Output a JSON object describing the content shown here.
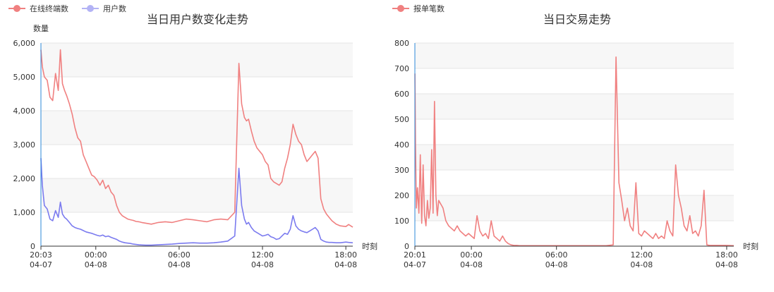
{
  "colors": {
    "red": "#f08080",
    "blue": "#7b7bef",
    "axis": "#2e8ad8",
    "band": "#f7f7f7",
    "grid": "#e6e6e6"
  },
  "chart_data": [
    {
      "type": "line",
      "title": "当日用户数变化走势",
      "ylabel": "数量",
      "xlabel": "时刻",
      "ylim": [
        0,
        6000
      ],
      "yticks": [
        "0",
        "1,000",
        "2,000",
        "3,000",
        "4,000",
        "5,000",
        "6,000"
      ],
      "ytick_values": [
        0,
        1000,
        2000,
        3000,
        4000,
        5000,
        6000
      ],
      "xlim_hours": [
        20.05,
        42.5
      ],
      "xticks": [
        {
          "hour": 20.05,
          "time": "20:03",
          "date": "04-07"
        },
        {
          "hour": 24,
          "time": "00:00",
          "date": "04-08"
        },
        {
          "hour": 30,
          "time": "06:00",
          "date": "04-08"
        },
        {
          "hour": 36,
          "time": "12:00",
          "date": "04-08"
        },
        {
          "hour": 42,
          "time": "18:00",
          "date": "04-08"
        }
      ],
      "legend": [
        "在线终端数",
        "用户数"
      ],
      "series": [
        {
          "name": "在线终端数",
          "color": "#f08080",
          "hours": [
            20.05,
            20.15,
            20.3,
            20.5,
            20.7,
            20.9,
            21.1,
            21.3,
            21.45,
            21.6,
            21.75,
            21.9,
            22.1,
            22.3,
            22.5,
            22.7,
            22.9,
            23.1,
            23.3,
            23.5,
            23.7,
            23.9,
            24.1,
            24.3,
            24.5,
            24.7,
            24.9,
            25.1,
            25.3,
            25.5,
            25.7,
            25.9,
            26.1,
            26.3,
            26.5,
            26.7,
            26.9,
            27.1,
            27.3,
            27.6,
            28,
            28.5,
            29,
            29.5,
            30,
            30.5,
            31,
            31.5,
            32,
            32.5,
            33,
            33.5,
            34,
            34.3,
            34.5,
            34.7,
            34.85,
            35,
            35.2,
            35.4,
            35.6,
            35.8,
            36,
            36.2,
            36.4,
            36.6,
            36.8,
            37,
            37.2,
            37.4,
            37.6,
            37.8,
            38,
            38.2,
            38.4,
            38.6,
            38.8,
            39,
            39.2,
            39.4,
            39.6,
            39.8,
            40,
            40.2,
            40.4,
            40.6,
            40.8,
            41,
            41.3,
            41.6,
            42,
            42.2,
            42.5
          ],
          "values": [
            5800,
            5300,
            5000,
            4900,
            4400,
            4300,
            5100,
            4600,
            5800,
            4800,
            4600,
            4450,
            4200,
            3900,
            3500,
            3200,
            3100,
            2700,
            2500,
            2300,
            2100,
            2050,
            1950,
            1800,
            1950,
            1700,
            1800,
            1600,
            1500,
            1200,
            1000,
            900,
            850,
            800,
            780,
            760,
            730,
            720,
            700,
            680,
            650,
            700,
            720,
            700,
            750,
            800,
            780,
            750,
            720,
            780,
            800,
            780,
            1000,
            5400,
            4200,
            3800,
            3700,
            3750,
            3400,
            3100,
            2900,
            2800,
            2700,
            2500,
            2400,
            2000,
            1900,
            1850,
            1800,
            1900,
            2300,
            2600,
            3000,
            3600,
            3300,
            3100,
            3000,
            2700,
            2500,
            2600,
            2700,
            2800,
            2600,
            1400,
            1100,
            950,
            850,
            750,
            650,
            600,
            580,
            640,
            560
          ]
        },
        {
          "name": "用户数",
          "color": "#7b7bef",
          "hours": [
            20.05,
            20.15,
            20.3,
            20.5,
            20.7,
            20.9,
            21.1,
            21.3,
            21.45,
            21.6,
            21.75,
            21.9,
            22.1,
            22.3,
            22.5,
            22.7,
            22.9,
            23.1,
            23.3,
            23.5,
            23.7,
            23.9,
            24.1,
            24.3,
            24.5,
            24.7,
            24.9,
            25.1,
            25.3,
            25.5,
            25.7,
            25.9,
            26.1,
            26.3,
            26.5,
            26.7,
            26.9,
            27.1,
            27.3,
            27.6,
            28,
            28.5,
            29,
            29.5,
            30,
            30.5,
            31,
            31.5,
            32,
            32.5,
            33,
            33.5,
            34,
            34.3,
            34.5,
            34.7,
            34.85,
            35,
            35.2,
            35.4,
            35.6,
            35.8,
            36,
            36.2,
            36.4,
            36.6,
            36.8,
            37,
            37.2,
            37.4,
            37.6,
            37.8,
            38,
            38.2,
            38.4,
            38.6,
            38.8,
            39,
            39.2,
            39.4,
            39.6,
            39.8,
            40,
            40.2,
            40.4,
            40.6,
            40.8,
            41,
            41.3,
            41.6,
            42,
            42.2,
            42.5
          ],
          "values": [
            2600,
            1800,
            1200,
            1100,
            800,
            750,
            1050,
            850,
            1300,
            950,
            850,
            800,
            700,
            600,
            550,
            520,
            500,
            460,
            420,
            400,
            380,
            350,
            320,
            300,
            330,
            280,
            300,
            260,
            230,
            200,
            150,
            120,
            100,
            90,
            80,
            60,
            50,
            40,
            35,
            30,
            30,
            40,
            50,
            60,
            80,
            90,
            100,
            90,
            90,
            100,
            120,
            150,
            300,
            2300,
            1200,
            800,
            650,
            700,
            550,
            450,
            400,
            350,
            300,
            320,
            350,
            280,
            250,
            200,
            220,
            300,
            380,
            350,
            500,
            900,
            600,
            500,
            450,
            420,
            400,
            450,
            500,
            550,
            450,
            200,
            150,
            120,
            110,
            110,
            100,
            100,
            120,
            110,
            100
          ]
        }
      ]
    },
    {
      "type": "line",
      "title": "当日交易走势",
      "xlabel": "时刻",
      "ylim": [
        0,
        800
      ],
      "yticks": [
        "0",
        "100",
        "200",
        "300",
        "400",
        "500",
        "600",
        "700",
        "800"
      ],
      "ytick_values": [
        0,
        100,
        200,
        300,
        400,
        500,
        600,
        700,
        800
      ],
      "xlim_hours": [
        20.017,
        42.5
      ],
      "xticks": [
        {
          "hour": 20.017,
          "time": "20:01",
          "date": "04-07"
        },
        {
          "hour": 24,
          "time": "00:00",
          "date": "04-08"
        },
        {
          "hour": 30,
          "time": "06:00",
          "date": "04-08"
        },
        {
          "hour": 36,
          "time": "12:00",
          "date": "04-08"
        },
        {
          "hour": 42,
          "time": "18:00",
          "date": "04-08"
        }
      ],
      "legend": [
        "报单笔数"
      ],
      "series": [
        {
          "name": "报单笔数",
          "color": "#f08080",
          "hours": [
            20.02,
            20.06,
            20.12,
            20.2,
            20.3,
            20.4,
            20.5,
            20.6,
            20.7,
            20.8,
            20.9,
            21,
            21.1,
            21.2,
            21.3,
            21.4,
            21.5,
            21.6,
            21.7,
            21.8,
            21.9,
            22,
            22.2,
            22.4,
            22.6,
            22.8,
            23,
            23.2,
            23.4,
            23.6,
            23.8,
            24,
            24.2,
            24.4,
            24.6,
            24.8,
            25,
            25.2,
            25.4,
            25.6,
            25.8,
            26,
            26.2,
            26.4,
            26.6,
            26.8,
            27,
            27.2,
            27.4,
            27.6,
            28,
            28.5,
            29,
            29.5,
            30,
            30.5,
            31,
            31.5,
            32,
            32.5,
            33,
            33.5,
            34,
            34.2,
            34.4,
            34.6,
            34.8,
            35,
            35.2,
            35.4,
            35.6,
            35.8,
            36,
            36.2,
            36.4,
            36.6,
            36.8,
            37,
            37.2,
            37.4,
            37.6,
            37.8,
            38,
            38.2,
            38.4,
            38.6,
            38.8,
            39,
            39.2,
            39.4,
            39.6,
            39.8,
            40,
            40.2,
            40.4,
            40.6,
            40.8,
            41,
            41.5,
            42,
            42.5
          ],
          "values": [
            680,
            400,
            150,
            230,
            130,
            360,
            90,
            320,
            120,
            80,
            180,
            110,
            150,
            380,
            130,
            570,
            200,
            120,
            180,
            170,
            160,
            150,
            100,
            80,
            70,
            60,
            80,
            60,
            50,
            40,
            50,
            40,
            30,
            120,
            60,
            40,
            50,
            30,
            100,
            40,
            30,
            20,
            40,
            20,
            10,
            5,
            3,
            3,
            2,
            2,
            2,
            2,
            2,
            2,
            2,
            2,
            2,
            2,
            2,
            2,
            2,
            2,
            5,
            745,
            250,
            180,
            100,
            150,
            80,
            60,
            250,
            50,
            40,
            60,
            50,
            40,
            30,
            50,
            30,
            40,
            30,
            100,
            60,
            40,
            320,
            200,
            150,
            80,
            60,
            120,
            50,
            60,
            40,
            80,
            220,
            5,
            3,
            3,
            3,
            3,
            2
          ]
        }
      ]
    }
  ]
}
